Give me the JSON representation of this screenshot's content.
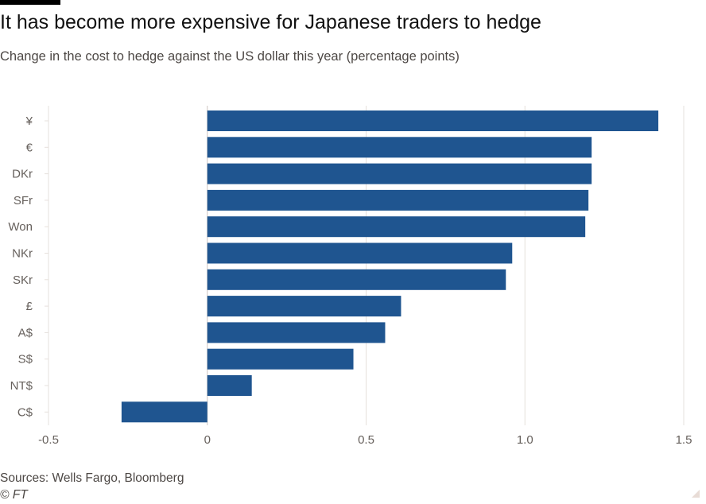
{
  "title": "It has become more expensive for Japanese traders to hedge",
  "subtitle": "Change in the cost to hedge against the US dollar this year (percentage points)",
  "source": "Sources: Wells Fargo, Bloomberg",
  "credit": "© FT",
  "colors": {
    "bar": "#1f5590",
    "grid": "#e6e0dc",
    "zero_line": "#cdc6c1",
    "text": "#66605c"
  },
  "chart_data": {
    "type": "bar",
    "orientation": "horizontal",
    "categories": [
      "¥",
      "€",
      "DKr",
      "SFr",
      "Won",
      "NKr",
      "SKr",
      "£",
      "A$",
      "S$",
      "NT$",
      "C$"
    ],
    "values": [
      1.42,
      1.21,
      1.21,
      1.2,
      1.19,
      0.96,
      0.94,
      0.61,
      0.56,
      0.46,
      0.14,
      -0.27
    ],
    "xlim": [
      -0.5,
      1.5
    ],
    "xticks": [
      -0.5,
      0,
      0.5,
      1.0,
      1.5
    ],
    "xtick_labels": [
      "-0.5",
      "0",
      "0.5",
      "1.0",
      "1.5"
    ],
    "grid": true
  }
}
